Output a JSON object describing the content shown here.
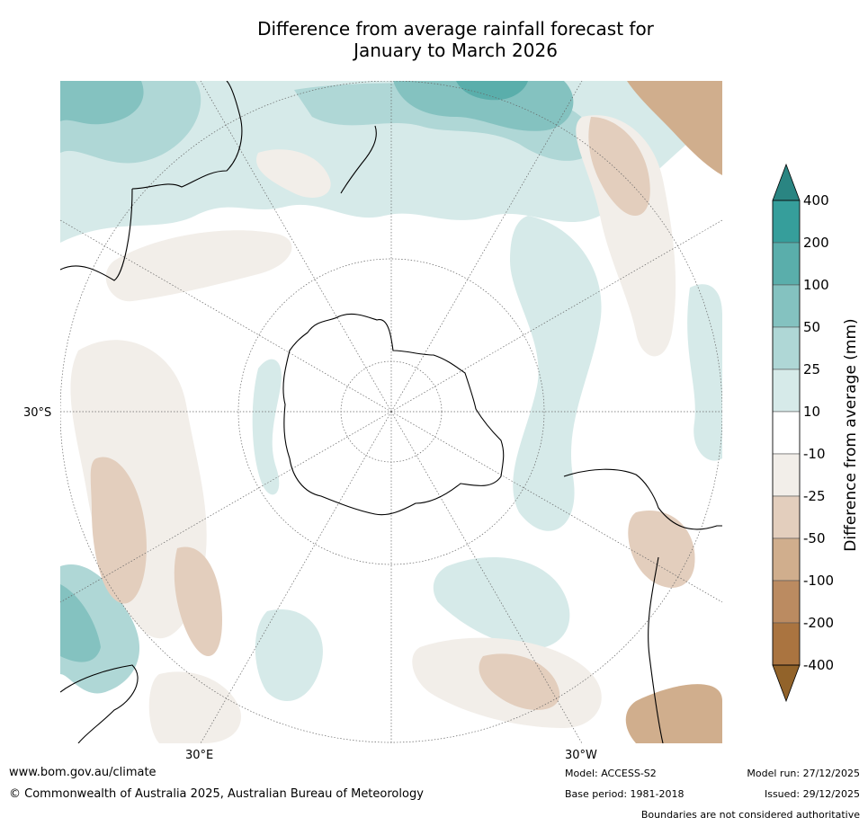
{
  "title": {
    "line1": "Difference from average rainfall forecast for",
    "line2": "January to March 2026"
  },
  "map": {
    "lat_label": "30°S",
    "lon_labels": [
      "30°E",
      "30°W"
    ]
  },
  "colorbar": {
    "title": "Difference from average (mm)",
    "labels": [
      "400",
      "200",
      "100",
      "50",
      "25",
      "10",
      "-10",
      "-25",
      "-50",
      "-100",
      "-200",
      "-400"
    ],
    "colors": [
      "#2a8582",
      "#369e9b",
      "#5aaeab",
      "#84c2c0",
      "#afd7d6",
      "#d6eae9",
      "#ffffff",
      "#f2eee9",
      "#e3cebd",
      "#d0ae8d",
      "#bb8b61",
      "#aa7440",
      "#92632a"
    ]
  },
  "footer": {
    "website": "www.bom.gov.au/climate",
    "copyright": "© Commonwealth of Australia 2025, Australian Bureau of Meteorology",
    "model": "Model: ACCESS-S2",
    "base_period": "Base period: 1981-2018",
    "model_run": "Model run: 27/12/2025",
    "issued": "Issued: 29/12/2025",
    "disclaimer": "Boundaries are not considered authoritative"
  }
}
